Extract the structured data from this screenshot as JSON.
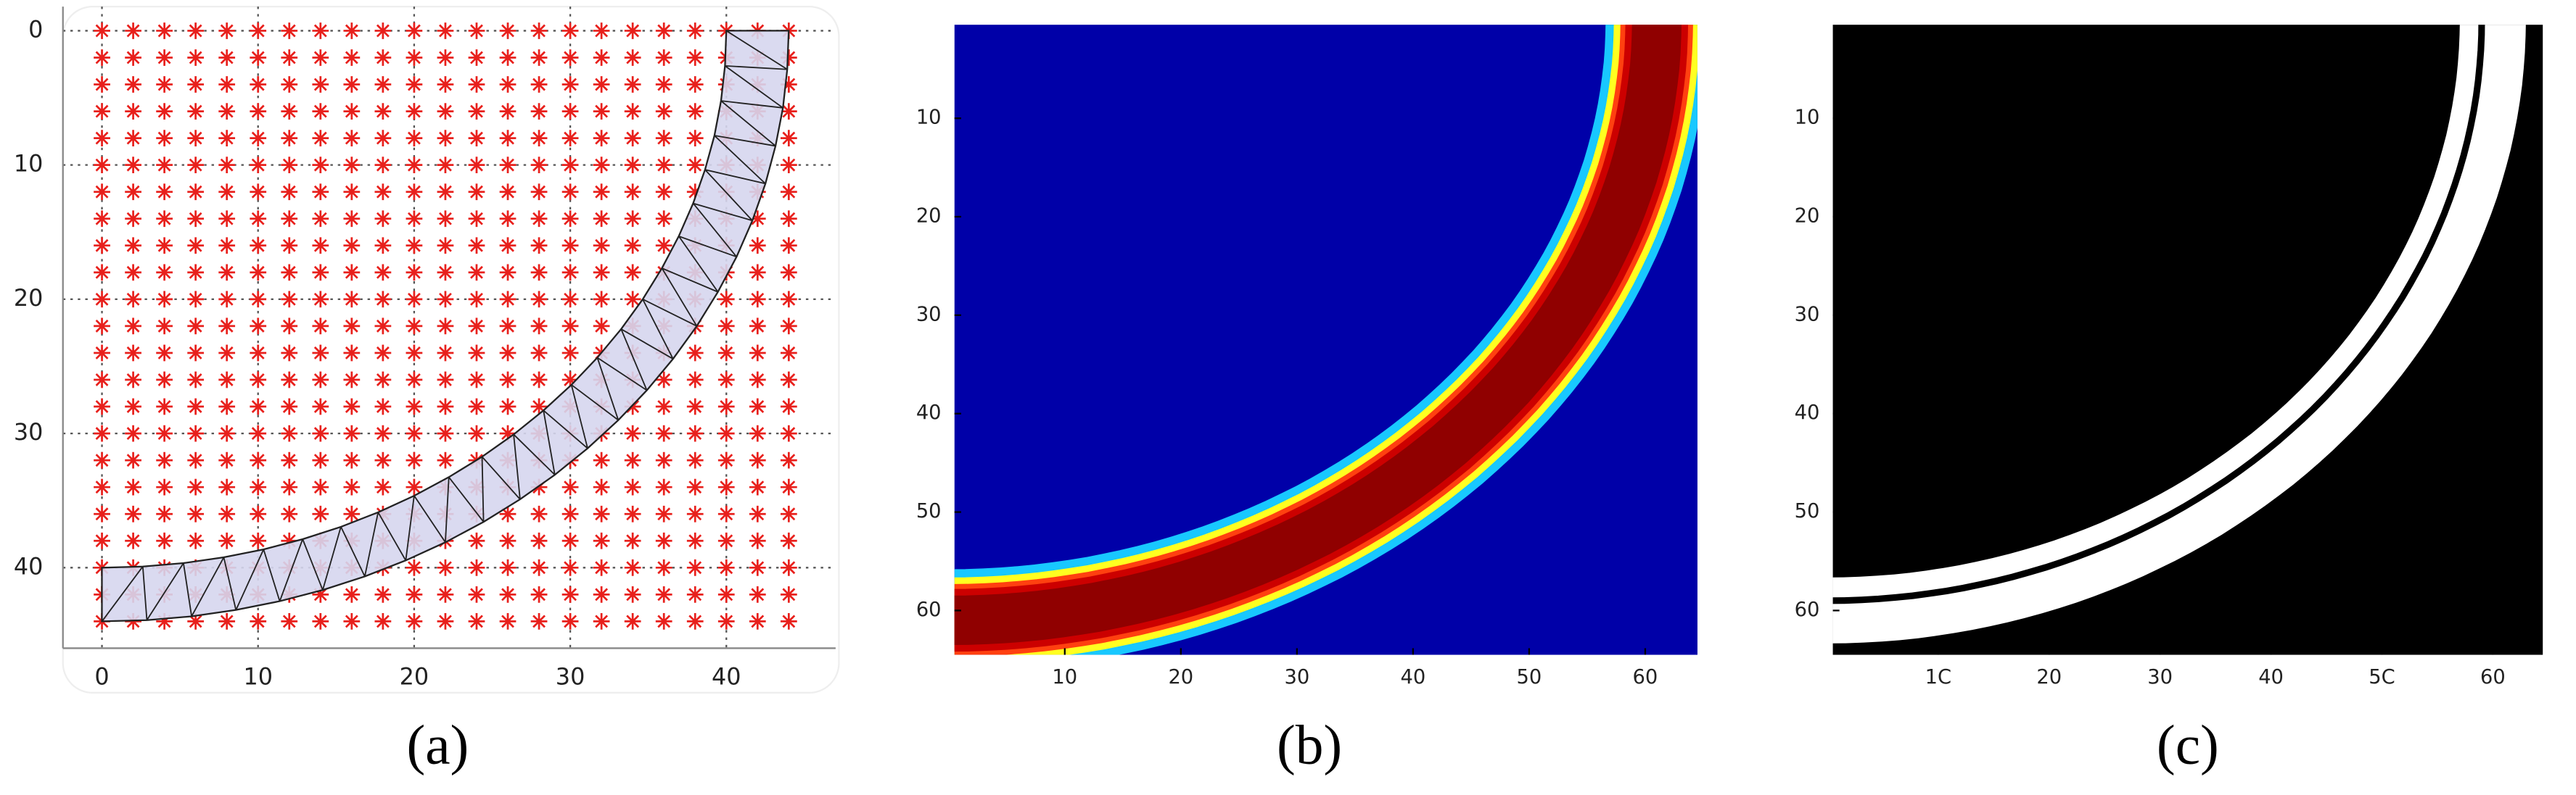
{
  "panels": [
    {
      "caption": "(a)",
      "xlim": [
        -2.5,
        47
      ],
      "ylim": [
        -1.8,
        46
      ],
      "xticks": [
        0,
        10,
        20,
        30,
        40
      ],
      "yticks": [
        0,
        10,
        20,
        30,
        40
      ]
    },
    {
      "caption": "(b)",
      "xlim": [
        0.5,
        64.5
      ],
      "ylim": [
        0.5,
        64.5
      ],
      "xticks": [
        10,
        20,
        30,
        40,
        50,
        60
      ],
      "yticks": [
        10,
        20,
        30,
        40,
        50,
        60
      ]
    },
    {
      "caption": "(c)",
      "xlim": [
        0.5,
        64.5
      ],
      "ylim": [
        0.5,
        64.5
      ],
      "xticks": [
        {
          "value": 10,
          "label": "1C"
        },
        20,
        30,
        40,
        {
          "value": 50,
          "label": "5C"
        },
        60
      ],
      "yticks": [
        10,
        20,
        30,
        40,
        50,
        60
      ]
    }
  ]
}
